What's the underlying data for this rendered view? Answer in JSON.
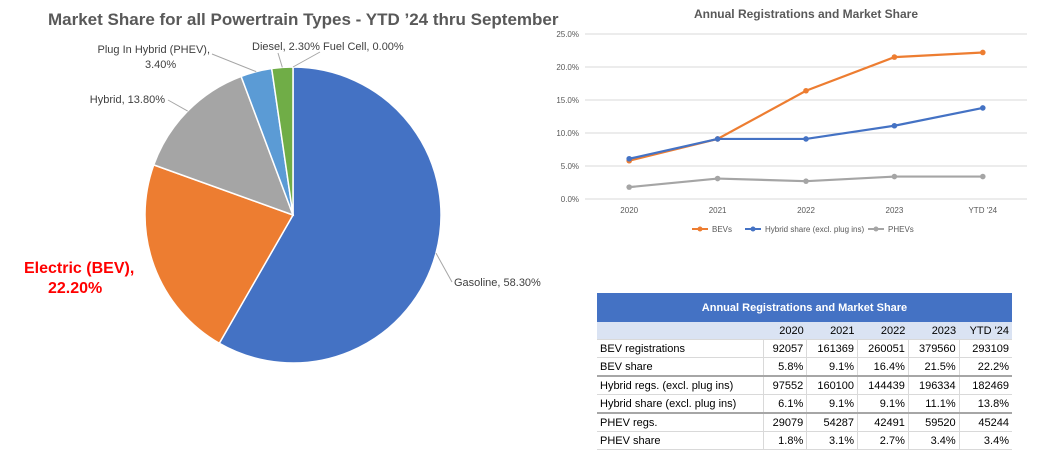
{
  "chart_data": [
    {
      "type": "pie",
      "title": "Market Share for all Powertrain Types - YTD ’24 thru September",
      "slices": [
        {
          "label": "Gasoline",
          "value": 58.3,
          "display": "Gasoline, 58.30%",
          "color": "#4472c4"
        },
        {
          "label": "Electric (BEV)",
          "value": 22.2,
          "display_line1": "Electric (BEV),",
          "display_line2": "22.20%",
          "color": "#ed7d31"
        },
        {
          "label": "Hybrid",
          "value": 13.8,
          "display": "Hybrid, 13.80%",
          "color": "#a5a5a5"
        },
        {
          "label": "Plug In Hybrid (PHEV)",
          "value": 3.4,
          "display_line1": "Plug In Hybrid (PHEV),",
          "display_line2": "3.40%",
          "color": "#5b9bd5"
        },
        {
          "label": "Diesel",
          "value": 2.3,
          "display": "Diesel, 2.30%",
          "color": "#70ad47"
        },
        {
          "label": "Fuel Cell",
          "value": 0.0,
          "display": "Fuel Cell, 0.00%",
          "color": "#264478"
        }
      ]
    },
    {
      "type": "line",
      "title": "Annual Registrations and Market Share",
      "x": [
        "2020",
        "2021",
        "2022",
        "2023",
        "YTD '24"
      ],
      "ylim": [
        0,
        25
      ],
      "yticks": [
        "0.0%",
        "5.0%",
        "10.0%",
        "15.0%",
        "20.0%",
        "25.0%"
      ],
      "grid": true,
      "legend": "bottom",
      "series": [
        {
          "name": "BEVs",
          "values": [
            5.8,
            9.1,
            16.4,
            21.5,
            22.2
          ],
          "color": "#ed7d31"
        },
        {
          "name": "Hybrid share (excl. plug ins)",
          "values": [
            6.1,
            9.1,
            9.1,
            11.1,
            13.8
          ],
          "color": "#4472c4"
        },
        {
          "name": "PHEVs",
          "values": [
            1.8,
            3.1,
            2.7,
            3.4,
            3.4
          ],
          "color": "#a5a5a5"
        }
      ]
    },
    {
      "type": "table",
      "title": "Annual Registrations and Market Share",
      "columns": [
        "",
        "2020",
        "2021",
        "2022",
        "2023",
        "YTD '24"
      ],
      "rows": [
        [
          "BEV registrations",
          "92057",
          "161369",
          "260051",
          "379560",
          "293109"
        ],
        [
          "BEV share",
          "5.8%",
          "9.1%",
          "16.4%",
          "21.5%",
          "22.2%"
        ],
        [
          "Hybrid regs. (excl. plug ins)",
          "97552",
          "160100",
          "144439",
          "196334",
          "182469"
        ],
        [
          "Hybrid share (excl. plug ins)",
          "6.1%",
          "9.1%",
          "9.1%",
          "11.1%",
          "13.8%"
        ],
        [
          "PHEV regs.",
          "29079",
          "54287",
          "42491",
          "59520",
          "45244"
        ],
        [
          "PHEV share",
          "1.8%",
          "3.1%",
          "2.7%",
          "3.4%",
          "3.4%"
        ]
      ]
    }
  ]
}
